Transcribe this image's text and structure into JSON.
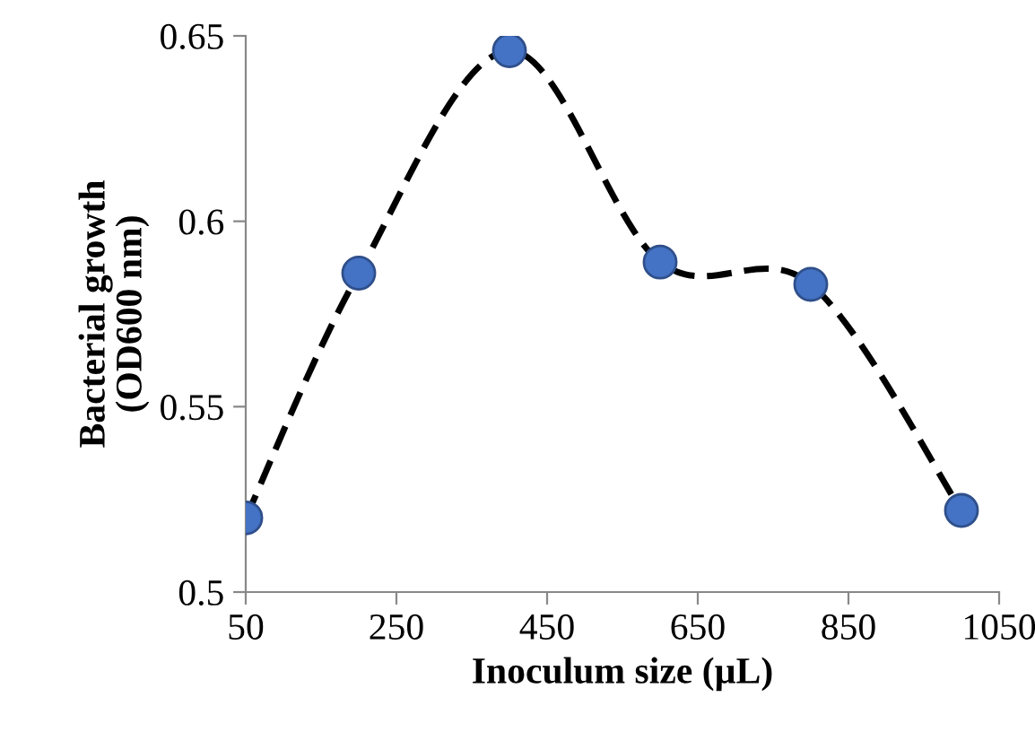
{
  "chart_data": {
    "type": "line",
    "xlabel": "Inoculum size (µL)",
    "ylabel": "Bacterial growth\n(OD600 nm)",
    "x": [
      50,
      200,
      400,
      600,
      800,
      1000
    ],
    "series": [
      {
        "color": "#4472c4",
        "values": [
          0.52,
          0.586,
          0.646,
          0.589,
          0.583,
          0.522
        ]
      }
    ],
    "xlim": [
      50,
      1050
    ],
    "xticks": [
      50,
      250,
      450,
      650,
      850,
      1050
    ],
    "ylim": [
      0.5,
      0.65
    ],
    "yticks": [
      0.5,
      0.55,
      0.6,
      0.65
    ],
    "marker": "circle",
    "line_style": "dashed",
    "grid": false,
    "legend": false
  }
}
